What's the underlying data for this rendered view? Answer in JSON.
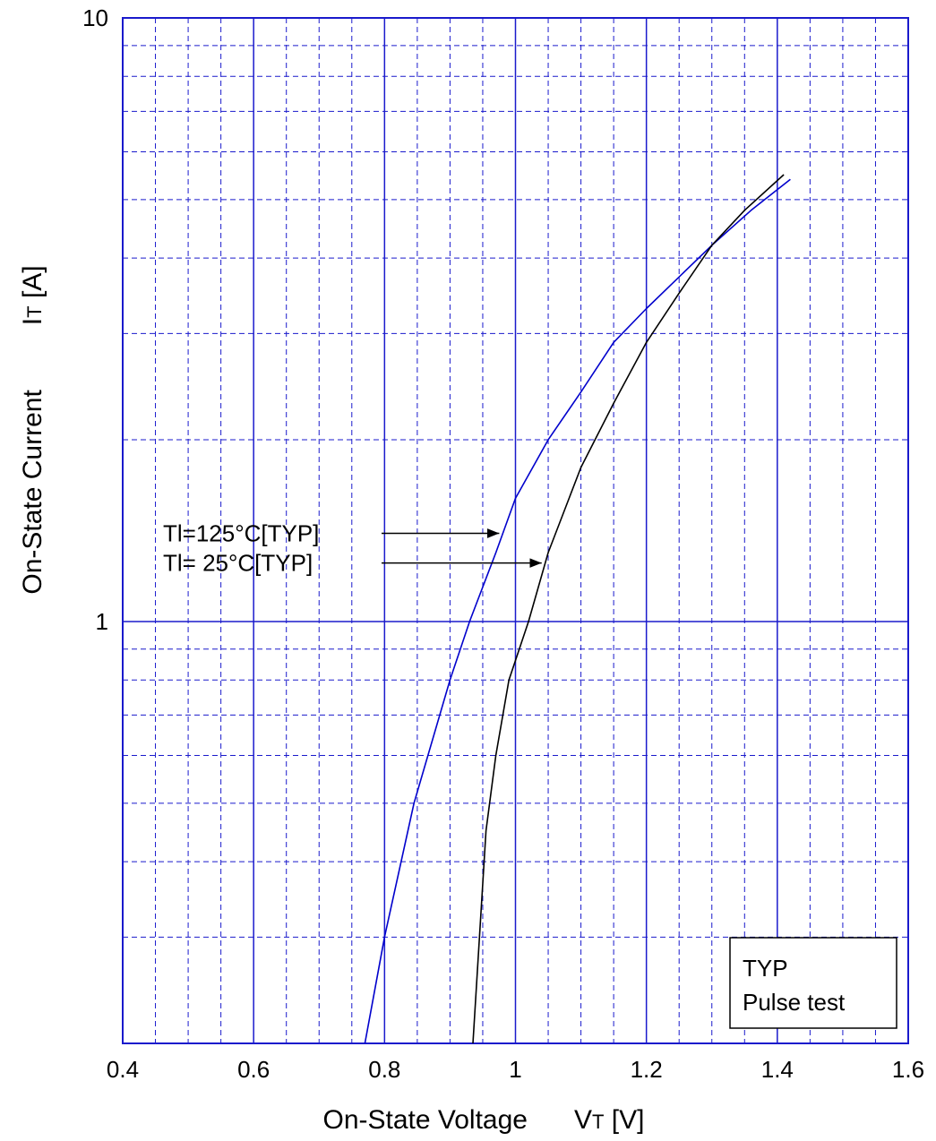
{
  "chart_data": {
    "type": "line",
    "xlabel_main": "On-State   Voltage",
    "xlabel_symbol": "V",
    "xlabel_sub": "T",
    "xlabel_unit": " [V]",
    "ylabel_main": "On-State  Current",
    "ylabel_symbol": "I",
    "ylabel_sub": "T",
    "ylabel_unit": " [A]",
    "xlim": [
      0.4,
      1.6
    ],
    "ylim": [
      0.2,
      10
    ],
    "y_scale": "log",
    "grid": true,
    "x_ticks": [
      {
        "value": 0.4,
        "label": "0.4"
      },
      {
        "value": 0.6,
        "label": "0.6"
      },
      {
        "value": 0.8,
        "label": "0.8"
      },
      {
        "value": 1.0,
        "label": "1"
      },
      {
        "value": 1.2,
        "label": "1.2"
      },
      {
        "value": 1.4,
        "label": "1.4"
      },
      {
        "value": 1.6,
        "label": "1.6"
      }
    ],
    "y_ticks": [
      {
        "value": 1,
        "label": "1"
      },
      {
        "value": 10,
        "label": "10"
      }
    ],
    "series": [
      {
        "name": "Tl=125°C[TYP]",
        "color": "#0000cc",
        "x": [
          0.77,
          0.8,
          0.845,
          0.9,
          0.93,
          0.97,
          1.0,
          1.05,
          1.1,
          1.15,
          1.2,
          1.3,
          1.36,
          1.42
        ],
        "y": [
          0.2,
          0.3,
          0.5,
          0.8,
          1.0,
          1.3,
          1.6,
          2.0,
          2.4,
          2.9,
          3.3,
          4.2,
          4.8,
          5.4
        ]
      },
      {
        "name": "Tl= 25°C[TYP]",
        "color": "#000000",
        "x": [
          0.935,
          0.945,
          0.955,
          0.97,
          0.99,
          1.02,
          1.05,
          1.1,
          1.15,
          1.2,
          1.25,
          1.3,
          1.35,
          1.41
        ],
        "y": [
          0.2,
          0.3,
          0.45,
          0.6,
          0.8,
          1.0,
          1.3,
          1.8,
          2.3,
          2.9,
          3.5,
          4.2,
          4.8,
          5.5
        ]
      }
    ],
    "annotations": [
      {
        "text": "Tl=125°C[TYP]",
        "target_series": 0,
        "target_y": 1.4
      },
      {
        "text": "Tl= 25°C[TYP]",
        "target_series": 1,
        "target_y": 1.25
      }
    ],
    "legend_box": {
      "lines": [
        "TYP",
        "Pulse test"
      ],
      "placement": "bottom-right"
    }
  }
}
